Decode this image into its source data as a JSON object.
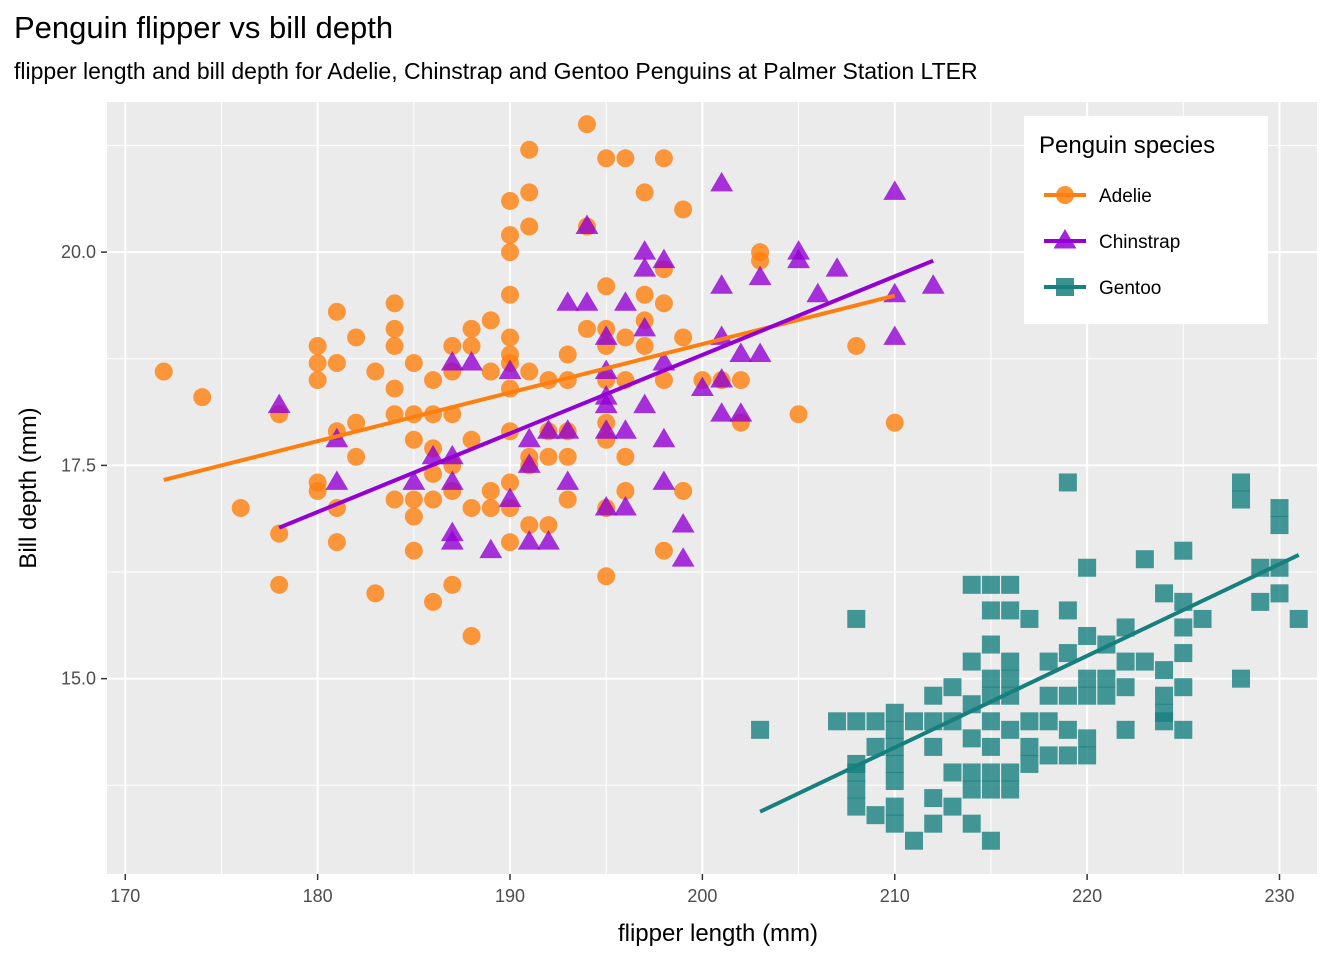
{
  "chart_data": {
    "type": "scatter",
    "title": "Penguin flipper vs bill depth",
    "subtitle": "flipper length and bill depth for Adelie, Chinstrap and Gentoo Penguins at Palmer Station LTER",
    "xlabel": "flipper length (mm)",
    "ylabel": "Bill depth (mm)",
    "xlim": [
      169.05,
      231.95
    ],
    "ylim": [
      12.71,
      21.76
    ],
    "x_ticks": [
      170,
      180,
      190,
      200,
      210,
      220,
      230
    ],
    "x_tick_labels": [
      "170",
      "180",
      "190",
      "200",
      "210",
      "220",
      "230"
    ],
    "y_ticks": [
      15,
      17.5,
      20
    ],
    "y_tick_labels": [
      "15.0",
      "17.5",
      "20.0"
    ],
    "grid": true,
    "legend": {
      "title": "Penguin species",
      "position": "top-right"
    },
    "series": [
      {
        "name": "Adelie",
        "color": "#FF7F0E",
        "marker": "circle",
        "trend": {
          "x": [
            172,
            210
          ],
          "y": [
            17.33,
            19.49
          ]
        },
        "points": [
          [
            172,
            18.6
          ],
          [
            174,
            18.3
          ],
          [
            176,
            17.0
          ],
          [
            178,
            18.1
          ],
          [
            178,
            16.7
          ],
          [
            178,
            16.1
          ],
          [
            180,
            18.9
          ],
          [
            180,
            18.5
          ],
          [
            180,
            17.3
          ],
          [
            180,
            17.2
          ],
          [
            180,
            18.7
          ],
          [
            181,
            19.3
          ],
          [
            181,
            18.7
          ],
          [
            181,
            17.9
          ],
          [
            181,
            17.0
          ],
          [
            181,
            16.6
          ],
          [
            182,
            19.0
          ],
          [
            182,
            17.6
          ],
          [
            182,
            18.0
          ],
          [
            183,
            18.6
          ],
          [
            183,
            16.0
          ],
          [
            184,
            19.4
          ],
          [
            184,
            19.1
          ],
          [
            184,
            18.9
          ],
          [
            184,
            18.4
          ],
          [
            184,
            18.1
          ],
          [
            184,
            17.1
          ],
          [
            185,
            18.7
          ],
          [
            185,
            18.1
          ],
          [
            185,
            17.8
          ],
          [
            185,
            17.1
          ],
          [
            185,
            16.9
          ],
          [
            185,
            16.5
          ],
          [
            186,
            18.5
          ],
          [
            186,
            17.7
          ],
          [
            186,
            17.1
          ],
          [
            186,
            18.1
          ],
          [
            186,
            15.9
          ],
          [
            186,
            17.4
          ],
          [
            187,
            18.9
          ],
          [
            187,
            18.6
          ],
          [
            187,
            18.1
          ],
          [
            187,
            17.5
          ],
          [
            187,
            17.2
          ],
          [
            187,
            16.1
          ],
          [
            188,
            19.1
          ],
          [
            188,
            18.9
          ],
          [
            188,
            17.8
          ],
          [
            188,
            17.0
          ],
          [
            188,
            15.5
          ],
          [
            189,
            19.2
          ],
          [
            189,
            18.6
          ],
          [
            189,
            17.2
          ],
          [
            189,
            17.0
          ],
          [
            190,
            20.6
          ],
          [
            190,
            20.2
          ],
          [
            190,
            20.0
          ],
          [
            190,
            19.5
          ],
          [
            190,
            19.0
          ],
          [
            190,
            18.8
          ],
          [
            190,
            18.7
          ],
          [
            190,
            18.4
          ],
          [
            190,
            17.9
          ],
          [
            190,
            17.3
          ],
          [
            190,
            17.0
          ],
          [
            190,
            16.6
          ],
          [
            191,
            21.2
          ],
          [
            191,
            20.7
          ],
          [
            191,
            20.3
          ],
          [
            191,
            18.6
          ],
          [
            191,
            17.6
          ],
          [
            191,
            17.5
          ],
          [
            191,
            16.8
          ],
          [
            192,
            18.5
          ],
          [
            192,
            17.9
          ],
          [
            192,
            17.6
          ],
          [
            192,
            16.8
          ],
          [
            193,
            18.8
          ],
          [
            193,
            18.5
          ],
          [
            193,
            17.9
          ],
          [
            193,
            17.6
          ],
          [
            193,
            17.1
          ],
          [
            194,
            21.5
          ],
          [
            194,
            20.3
          ],
          [
            194,
            19.1
          ],
          [
            195,
            21.1
          ],
          [
            195,
            19.6
          ],
          [
            195,
            19.1
          ],
          [
            195,
            18.9
          ],
          [
            195,
            18.5
          ],
          [
            195,
            18.0
          ],
          [
            195,
            17.8
          ],
          [
            195,
            17.0
          ],
          [
            195,
            16.2
          ],
          [
            196,
            21.1
          ],
          [
            196,
            19.0
          ],
          [
            196,
            18.5
          ],
          [
            196,
            17.6
          ],
          [
            196,
            17.2
          ],
          [
            197,
            20.7
          ],
          [
            197,
            19.5
          ],
          [
            197,
            19.2
          ],
          [
            197,
            18.9
          ],
          [
            198,
            21.1
          ],
          [
            198,
            19.8
          ],
          [
            198,
            19.4
          ],
          [
            198,
            18.5
          ],
          [
            198,
            16.5
          ],
          [
            199,
            20.5
          ],
          [
            199,
            19.0
          ],
          [
            199,
            17.2
          ],
          [
            200,
            18.5
          ],
          [
            201,
            18.5
          ],
          [
            202,
            18.5
          ],
          [
            202,
            18.0
          ],
          [
            203,
            20.0
          ],
          [
            203,
            19.9
          ],
          [
            205,
            18.1
          ],
          [
            208,
            18.9
          ],
          [
            210,
            18.0
          ]
        ]
      },
      {
        "name": "Chinstrap",
        "color": "#9400D3",
        "marker": "triangle",
        "trend": {
          "x": [
            178,
            212
          ],
          "y": [
            16.77,
            19.9
          ]
        },
        "points": [
          [
            178,
            18.2
          ],
          [
            181,
            17.8
          ],
          [
            181,
            17.3
          ],
          [
            185,
            17.3
          ],
          [
            186,
            17.6
          ],
          [
            187,
            18.7
          ],
          [
            187,
            17.6
          ],
          [
            187,
            17.3
          ],
          [
            187,
            16.7
          ],
          [
            187,
            16.6
          ],
          [
            188,
            18.7
          ],
          [
            189,
            16.5
          ],
          [
            190,
            18.6
          ],
          [
            190,
            17.1
          ],
          [
            191,
            17.8
          ],
          [
            191,
            17.5
          ],
          [
            191,
            16.6
          ],
          [
            192,
            17.9
          ],
          [
            192,
            16.6
          ],
          [
            193,
            19.4
          ],
          [
            193,
            17.9
          ],
          [
            193,
            17.3
          ],
          [
            194,
            20.3
          ],
          [
            194,
            19.4
          ],
          [
            195,
            19.0
          ],
          [
            195,
            18.6
          ],
          [
            195,
            18.3
          ],
          [
            195,
            18.2
          ],
          [
            195,
            17.9
          ],
          [
            195,
            17.0
          ],
          [
            196,
            19.4
          ],
          [
            196,
            17.9
          ],
          [
            196,
            17.0
          ],
          [
            197,
            20.0
          ],
          [
            197,
            19.8
          ],
          [
            197,
            19.1
          ],
          [
            197,
            18.2
          ],
          [
            198,
            19.9
          ],
          [
            198,
            18.7
          ],
          [
            198,
            17.8
          ],
          [
            198,
            17.3
          ],
          [
            199,
            16.8
          ],
          [
            199,
            16.4
          ],
          [
            200,
            18.4
          ],
          [
            201,
            20.8
          ],
          [
            201,
            19.6
          ],
          [
            201,
            19.0
          ],
          [
            201,
            18.5
          ],
          [
            201,
            18.1
          ],
          [
            202,
            18.8
          ],
          [
            202,
            18.1
          ],
          [
            203,
            19.7
          ],
          [
            203,
            18.8
          ],
          [
            205,
            20.0
          ],
          [
            205,
            19.9
          ],
          [
            206,
            19.5
          ],
          [
            207,
            19.8
          ],
          [
            210,
            20.7
          ],
          [
            210,
            19.5
          ],
          [
            210,
            19.0
          ],
          [
            212,
            19.6
          ]
        ]
      },
      {
        "name": "Gentoo",
        "color": "#17807E",
        "marker": "square",
        "trend": {
          "x": [
            203,
            231
          ],
          "y": [
            13.44,
            16.45
          ]
        },
        "points": [
          [
            203,
            14.4
          ],
          [
            207,
            14.5
          ],
          [
            208,
            15.7
          ],
          [
            208,
            14.5
          ],
          [
            208,
            14.0
          ],
          [
            208,
            13.9
          ],
          [
            208,
            13.7
          ],
          [
            208,
            13.5
          ],
          [
            209,
            14.5
          ],
          [
            209,
            14.2
          ],
          [
            209,
            13.4
          ],
          [
            210,
            14.6
          ],
          [
            210,
            14.4
          ],
          [
            210,
            14.2
          ],
          [
            210,
            14.0
          ],
          [
            210,
            13.8
          ],
          [
            210,
            13.5
          ],
          [
            210,
            13.3
          ],
          [
            211,
            14.5
          ],
          [
            211,
            13.1
          ],
          [
            212,
            14.8
          ],
          [
            212,
            14.5
          ],
          [
            212,
            14.2
          ],
          [
            212,
            13.6
          ],
          [
            212,
            13.3
          ],
          [
            213,
            14.9
          ],
          [
            213,
            14.5
          ],
          [
            213,
            13.9
          ],
          [
            213,
            13.5
          ],
          [
            214,
            16.1
          ],
          [
            214,
            15.2
          ],
          [
            214,
            14.7
          ],
          [
            214,
            14.3
          ],
          [
            214,
            13.9
          ],
          [
            214,
            13.7
          ],
          [
            214,
            13.3
          ],
          [
            215,
            16.1
          ],
          [
            215,
            15.8
          ],
          [
            215,
            15.4
          ],
          [
            215,
            15.0
          ],
          [
            215,
            14.8
          ],
          [
            215,
            14.5
          ],
          [
            215,
            14.2
          ],
          [
            215,
            13.9
          ],
          [
            215,
            13.7
          ],
          [
            215,
            13.1
          ],
          [
            216,
            16.1
          ],
          [
            216,
            15.8
          ],
          [
            216,
            15.2
          ],
          [
            216,
            15.0
          ],
          [
            216,
            14.8
          ],
          [
            216,
            14.4
          ],
          [
            216,
            13.9
          ],
          [
            216,
            13.7
          ],
          [
            217,
            15.7
          ],
          [
            217,
            14.5
          ],
          [
            217,
            14.2
          ],
          [
            217,
            14.0
          ],
          [
            218,
            15.2
          ],
          [
            218,
            14.8
          ],
          [
            218,
            14.5
          ],
          [
            218,
            14.1
          ],
          [
            219,
            17.3
          ],
          [
            219,
            15.8
          ],
          [
            219,
            15.3
          ],
          [
            219,
            14.8
          ],
          [
            219,
            14.4
          ],
          [
            219,
            14.1
          ],
          [
            220,
            16.3
          ],
          [
            220,
            15.5
          ],
          [
            220,
            15.0
          ],
          [
            220,
            14.8
          ],
          [
            220,
            14.3
          ],
          [
            220,
            14.1
          ],
          [
            221,
            15.4
          ],
          [
            221,
            15.0
          ],
          [
            221,
            14.8
          ],
          [
            222,
            15.6
          ],
          [
            222,
            15.2
          ],
          [
            222,
            14.9
          ],
          [
            222,
            14.4
          ],
          [
            223,
            16.4
          ],
          [
            223,
            15.2
          ],
          [
            224,
            16.0
          ],
          [
            224,
            15.1
          ],
          [
            224,
            14.8
          ],
          [
            224,
            14.6
          ],
          [
            224,
            14.5
          ],
          [
            225,
            16.5
          ],
          [
            225,
            15.9
          ],
          [
            225,
            15.6
          ],
          [
            225,
            15.3
          ],
          [
            225,
            14.9
          ],
          [
            225,
            14.4
          ],
          [
            226,
            15.7
          ],
          [
            228,
            17.3
          ],
          [
            228,
            17.1
          ],
          [
            228,
            15.0
          ],
          [
            229,
            16.3
          ],
          [
            229,
            15.9
          ],
          [
            230,
            17.0
          ],
          [
            230,
            16.8
          ],
          [
            230,
            16.3
          ],
          [
            230,
            16.0
          ],
          [
            231,
            15.7
          ]
        ]
      }
    ]
  }
}
